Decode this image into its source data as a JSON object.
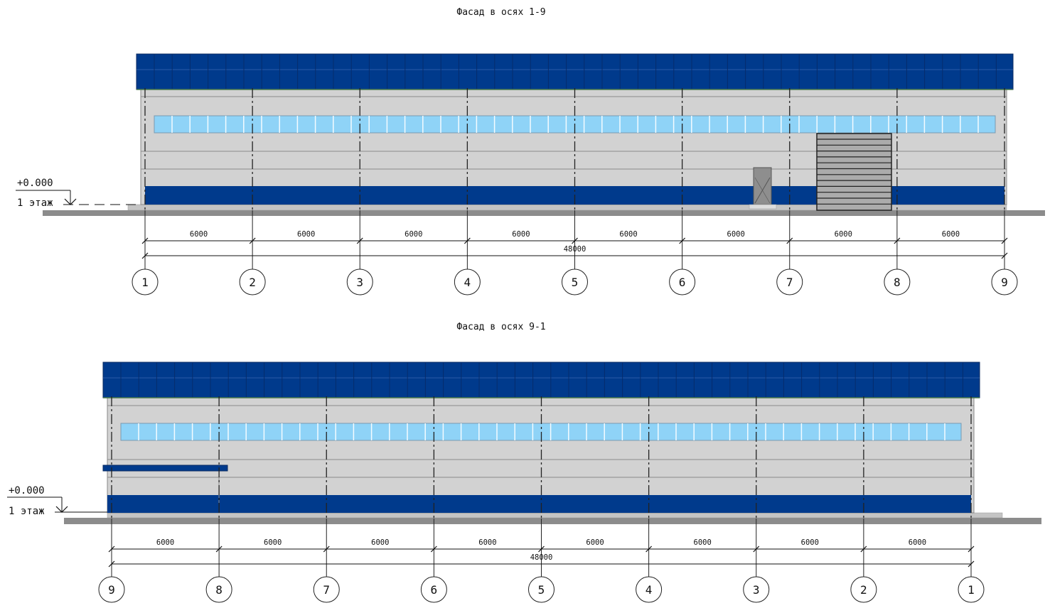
{
  "facades": [
    {
      "title": "Фасад в осях 1-9",
      "axes": [
        "1",
        "2",
        "3",
        "4",
        "5",
        "6",
        "7",
        "8",
        "9"
      ],
      "spans": [
        "6000",
        "6000",
        "6000",
        "6000",
        "6000",
        "6000",
        "6000",
        "6000"
      ],
      "total": "48000",
      "level_value": "+0.000",
      "level_name": "1 этаж",
      "has_door": true,
      "has_gate": true,
      "has_canopy": false
    },
    {
      "title": "Фасад в осях 9-1",
      "axes": [
        "9",
        "8",
        "7",
        "6",
        "5",
        "4",
        "3",
        "2",
        "1"
      ],
      "spans": [
        "6000",
        "6000",
        "6000",
        "6000",
        "6000",
        "6000",
        "6000",
        "6000"
      ],
      "total": "48000",
      "level_value": "+0.000",
      "level_name": "1 этаж",
      "has_door": false,
      "has_gate": false,
      "has_canopy": true
    }
  ],
  "colors": {
    "roof": "#003a8c",
    "wall": "#d2d2d2",
    "window": "#8fd3f7",
    "band": "#003a8c",
    "ground": "#8c8c8c",
    "plinth": "#c4c4c4"
  }
}
